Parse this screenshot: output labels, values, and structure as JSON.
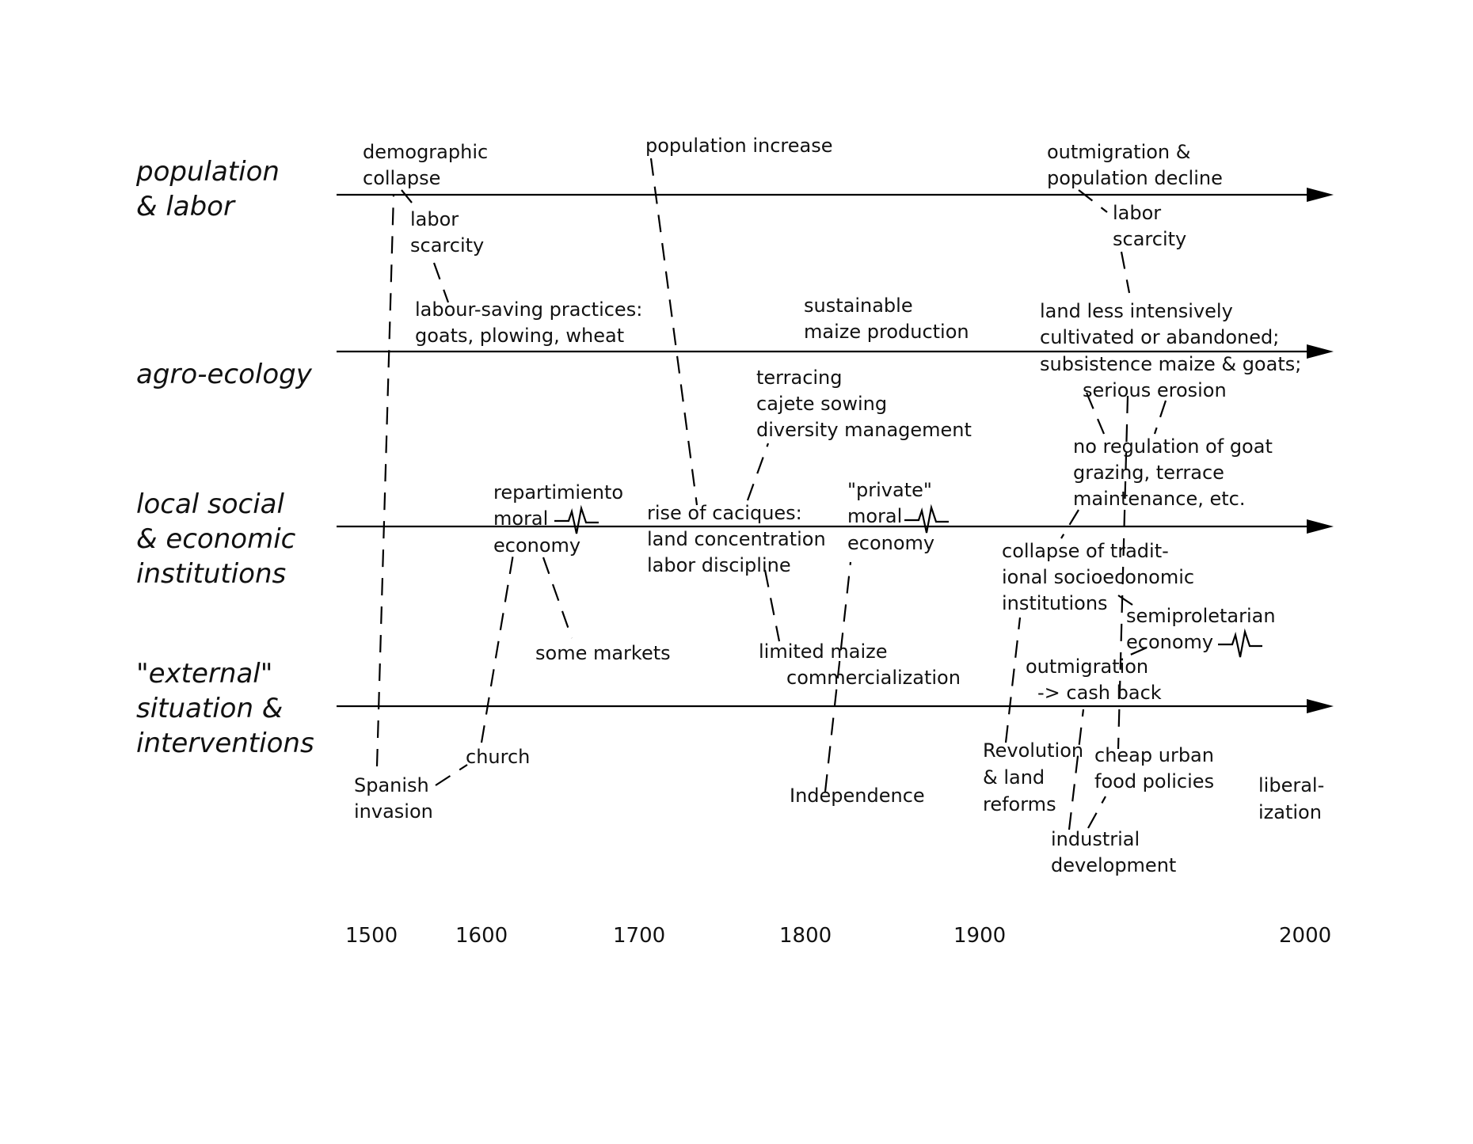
{
  "diagram": {
    "lanes": [
      {
        "lines": [
          "population",
          "& labor"
        ]
      },
      {
        "lines": [
          "agro-ecology"
        ]
      },
      {
        "lines": [
          "local social",
          "& economic",
          "institutions"
        ]
      },
      {
        "lines": [
          "\"external\"",
          "situation &",
          "interventions"
        ]
      }
    ],
    "years": [
      "1500",
      "1600",
      "1700",
      "1800",
      "1900",
      "2000"
    ],
    "notes": {
      "demographic_collapse": [
        "demographic",
        "collapse"
      ],
      "population_increase": [
        "population increase"
      ],
      "outmigration_decline": [
        "outmigration &",
        "population decline"
      ],
      "labor_scarcity_1": [
        "labor",
        "scarcity"
      ],
      "labor_scarcity_2": [
        "labor",
        "scarcity"
      ],
      "labour_saving": [
        "labour-saving practices:",
        "goats, plowing, wheat"
      ],
      "sustainable_maize": [
        "sustainable",
        "maize production"
      ],
      "land_less": [
        "land less intensively",
        "cultivated or abandoned;",
        "subsistence maize & goats;",
        "serious erosion"
      ],
      "terracing": [
        "terracing",
        "cajete sowing",
        "diversity management"
      ],
      "no_regulation": [
        "no regulation of goat",
        "grazing, terrace",
        "maintenance, etc."
      ],
      "repartimiento": [
        "repartimiento",
        "moral",
        "economy"
      ],
      "rise_caciques": [
        "rise of caciques:",
        "land concentration",
        "labor discipline"
      ],
      "private_moral": [
        "\"private\"",
        "moral",
        "economy"
      ],
      "collapse_traditional": [
        "collapse of tradit-",
        "ional socioeconomic",
        "institutions"
      ],
      "semiproletarian": [
        "semiproletarian",
        "economy"
      ],
      "some_markets": [
        "some markets"
      ],
      "limited_maize": [
        "limited maize",
        "commercialization"
      ],
      "outmigration_cash": [
        "outmigration",
        "-> cash back"
      ],
      "church": [
        "church"
      ],
      "spanish_invasion": [
        "Spanish",
        "invasion"
      ],
      "independence": [
        "Independence"
      ],
      "revolution": [
        "Revolution",
        "& land",
        "reforms"
      ],
      "cheap_urban": [
        "cheap urban",
        "food policies"
      ],
      "liberalization": [
        "liberal-",
        "ization"
      ],
      "industrial": [
        "industrial",
        "development"
      ]
    }
  }
}
